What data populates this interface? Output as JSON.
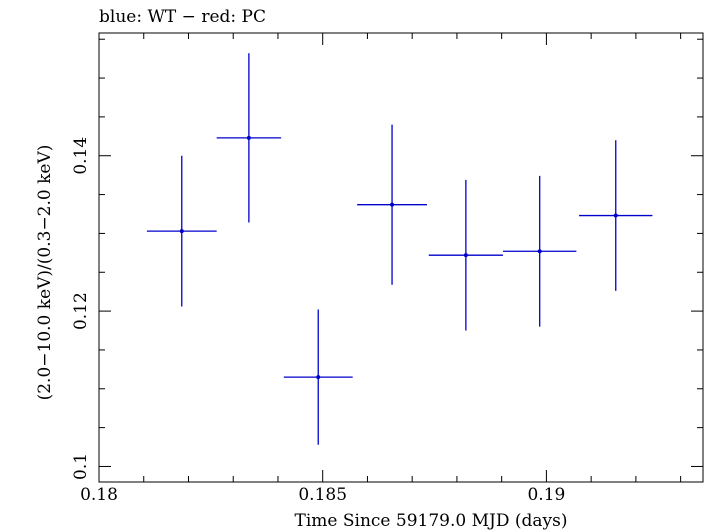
{
  "chart_data": {
    "type": "scatter",
    "title": "blue: WT − red: PC",
    "xlabel": "Time Since 59179.0 MJD (days)",
    "ylabel": "(2.0−10.0 keV)/(0.3−2.0 keV)",
    "xlim": [
      0.18,
      0.1935
    ],
    "ylim": [
      0.098,
      0.1558
    ],
    "x_ticks": [
      {
        "value": 0.18,
        "label": "0.18"
      },
      {
        "value": 0.185,
        "label": "0.185"
      },
      {
        "value": 0.19,
        "label": "0.19"
      }
    ],
    "y_ticks": [
      {
        "value": 0.1,
        "label": "0.1"
      },
      {
        "value": 0.12,
        "label": "0.12"
      },
      {
        "value": 0.14,
        "label": "0.14"
      }
    ],
    "x_minor_step": 0.001,
    "y_minor_step": 0.005,
    "series": [
      {
        "name": "WT",
        "color": "#0000cc",
        "points": [
          {
            "x": 0.18185,
            "xerr": 0.00078,
            "y": 0.1303,
            "yerr": 0.0097
          },
          {
            "x": 0.18335,
            "xerr": 0.00072,
            "y": 0.1423,
            "yerr": 0.0109
          },
          {
            "x": 0.1849,
            "xerr": 0.00077,
            "y": 0.1115,
            "yerr": 0.0087
          },
          {
            "x": 0.18655,
            "xerr": 0.00078,
            "y": 0.1337,
            "yerr": 0.0103
          },
          {
            "x": 0.1882,
            "xerr": 0.00083,
            "y": 0.1272,
            "yerr": 0.0097
          },
          {
            "x": 0.18985,
            "xerr": 0.00082,
            "y": 0.1277,
            "yerr": 0.0097
          },
          {
            "x": 0.19155,
            "xerr": 0.00082,
            "y": 0.1323,
            "yerr": 0.0097
          }
        ]
      }
    ]
  }
}
